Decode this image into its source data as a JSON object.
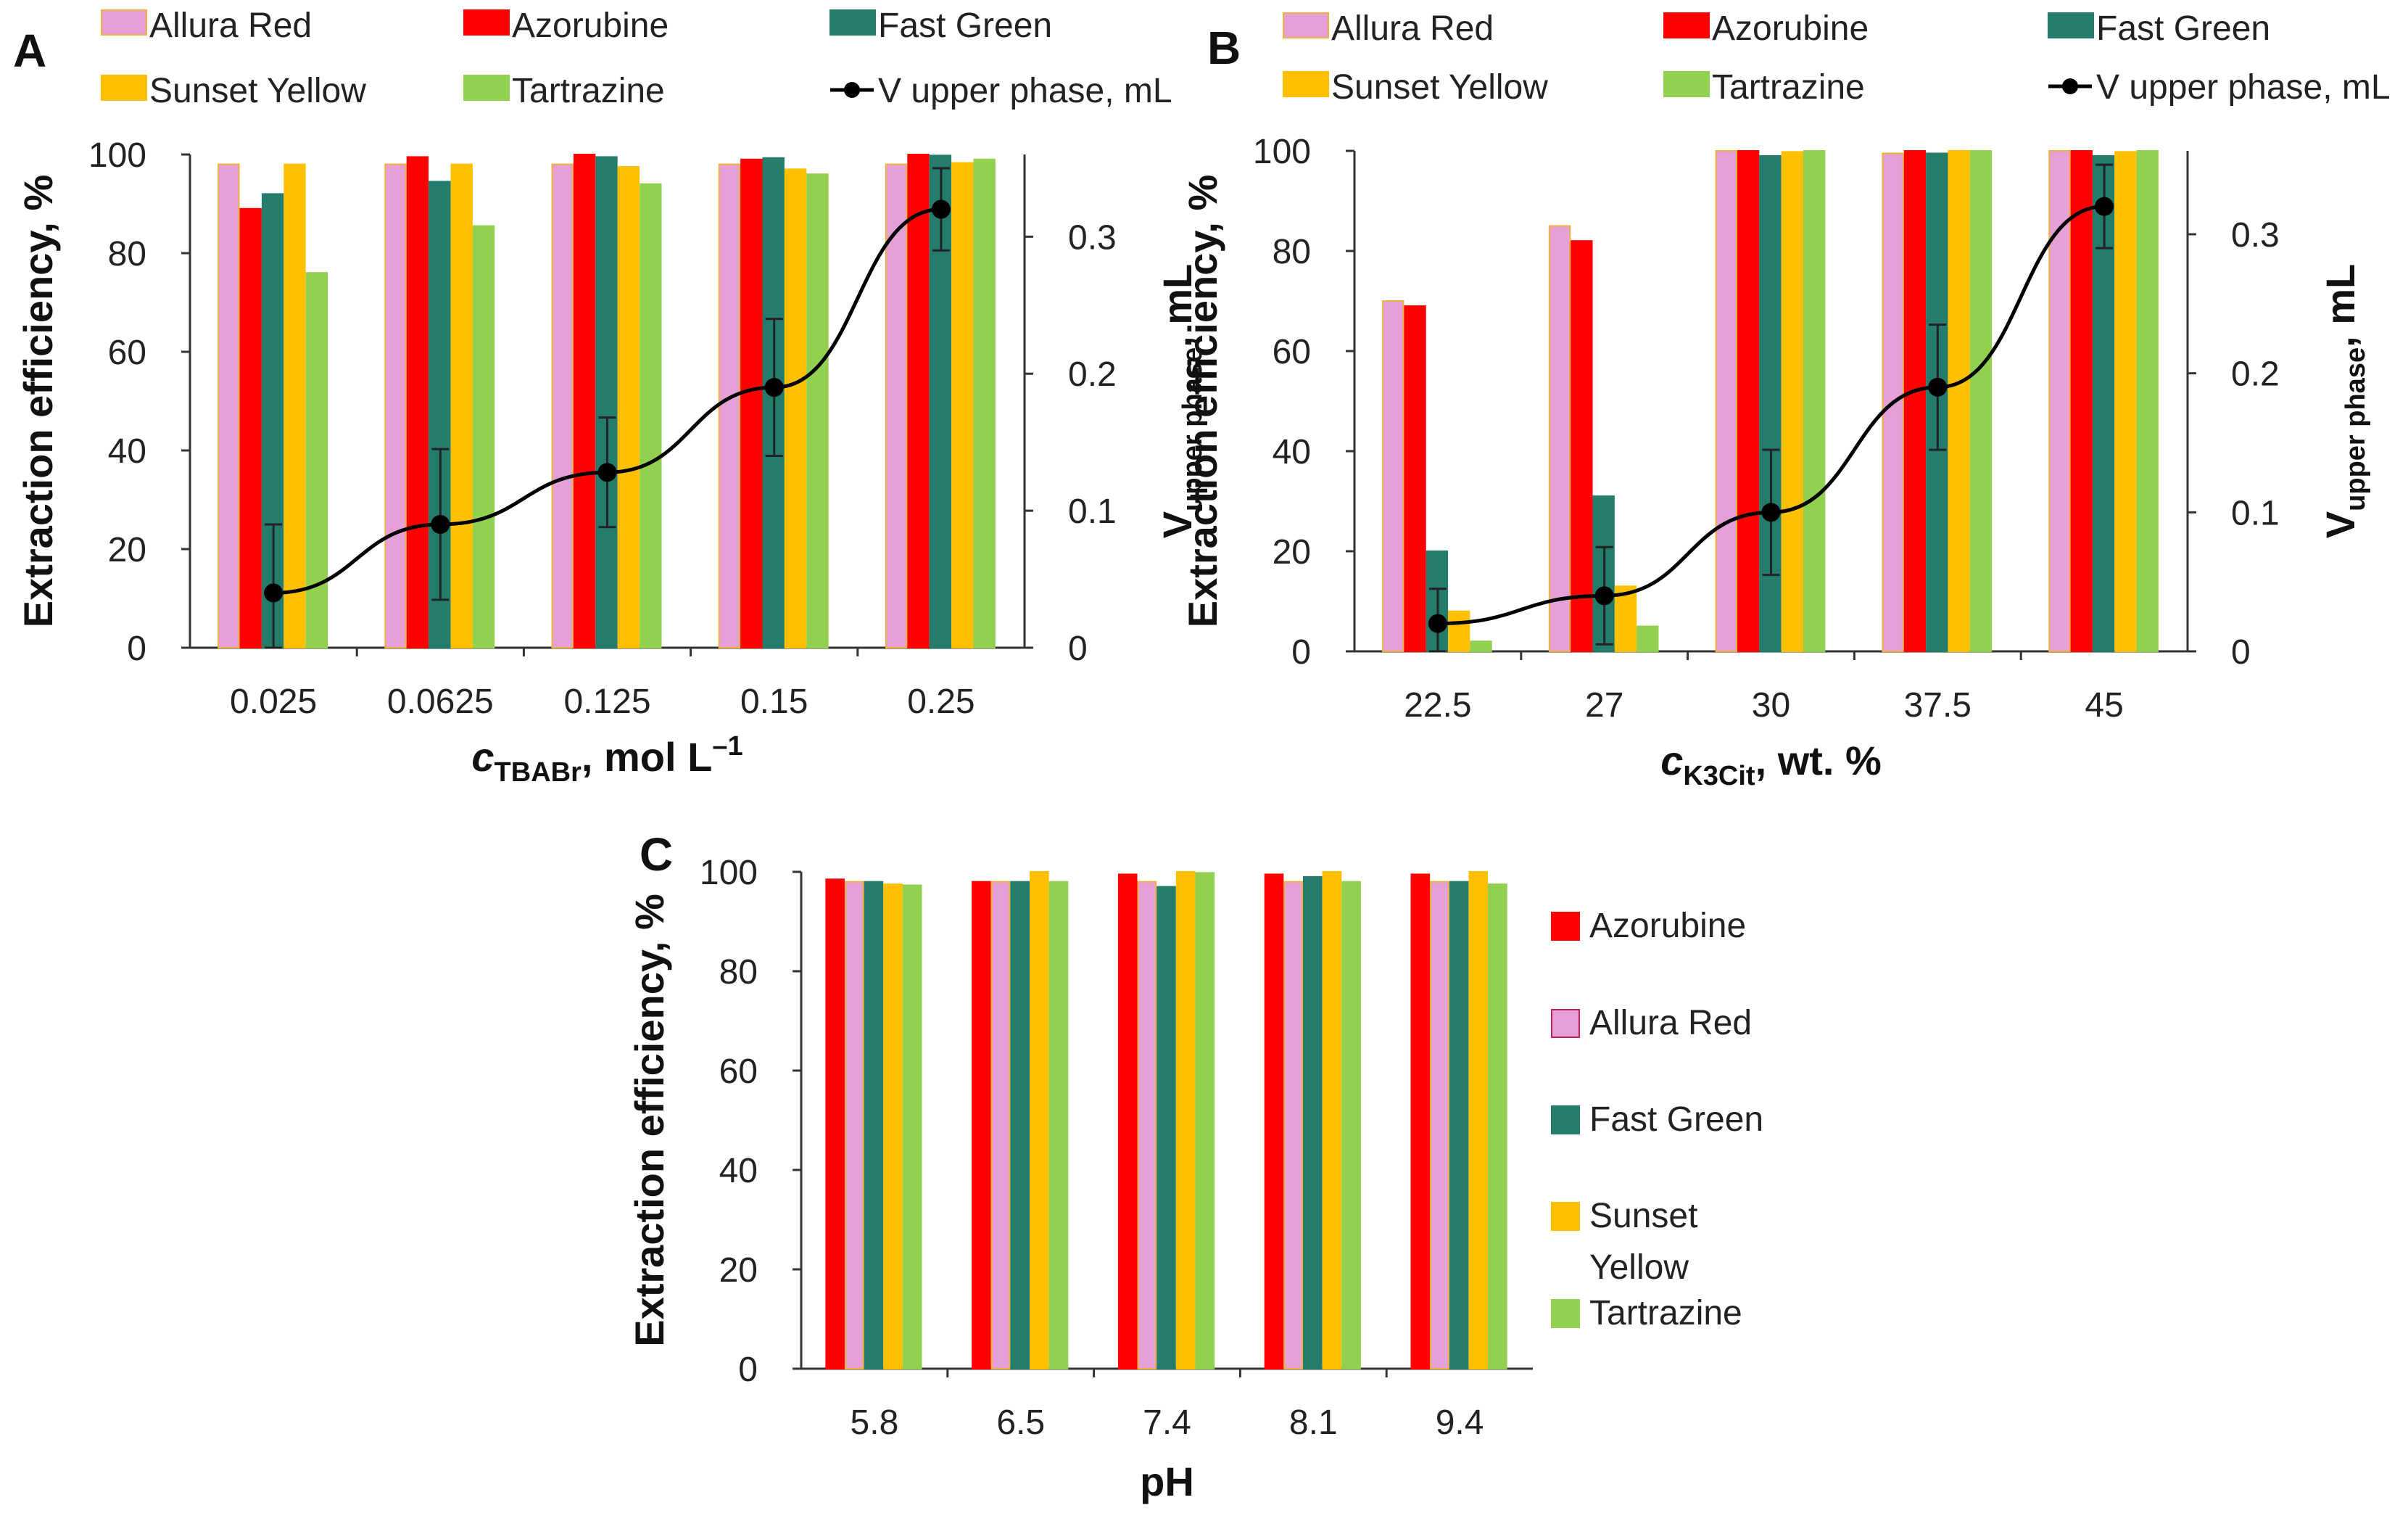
{
  "colors": {
    "allura_red": "#e6a0d8",
    "azorubine": "#ff0000",
    "fast_green": "#247c6c",
    "sunset_yellow": "#ffc000",
    "tartrazine": "#92d050",
    "line": "#000000"
  },
  "chart_data": [
    {
      "panel": "A",
      "type": "bar",
      "categories": [
        "0.025",
        "0.0625",
        "0.125",
        "0.15",
        "0.25"
      ],
      "series": [
        {
          "name": "Allura Red",
          "key": "allura_red",
          "values": [
            98,
            98,
            98,
            98,
            98
          ]
        },
        {
          "name": "Azorubine",
          "key": "azorubine",
          "values": [
            89,
            99.5,
            100,
            99,
            100
          ]
        },
        {
          "name": "Fast Green",
          "key": "fast_green",
          "values": [
            92,
            94.5,
            99.5,
            99.3,
            99.8
          ]
        },
        {
          "name": "Sunset Yellow",
          "key": "sunset_yellow",
          "values": [
            98,
            98,
            97.5,
            97,
            98.3
          ]
        },
        {
          "name": "Tartrazine",
          "key": "tartrazine",
          "values": [
            76,
            85.5,
            94,
            96,
            99
          ]
        }
      ],
      "line_series": {
        "name": "V upper phase, mL",
        "values": [
          0.04,
          0.09,
          0.128,
          0.19,
          0.32
        ],
        "errors": [
          0.05,
          0.055,
          0.04,
          0.05,
          0.03
        ]
      },
      "xlabel_main": "c",
      "xlabel_sub": "TBABr",
      "xlabel_rest": ", mol L",
      "xlabel_sup": "–1",
      "ylabel": "Extraction efficiency, %",
      "y2label_main": "V",
      "y2label_sub": "upper phase",
      "y2label_rest": ", mL",
      "ylim": [
        0,
        100
      ],
      "y2lim": [
        0,
        0.36
      ],
      "yticks": [
        "0",
        "20",
        "40",
        "60",
        "80",
        "100"
      ],
      "y2ticks": [
        "0",
        "0.1",
        "0.2",
        "0.3"
      ],
      "legend": [
        "Allura Red",
        "Azorubine",
        "Fast Green",
        "Sunset Yellow",
        "Tartrazine",
        "V upper phase, mL"
      ]
    },
    {
      "panel": "B",
      "type": "bar",
      "categories": [
        "22.5",
        "27",
        "30",
        "37.5",
        "45"
      ],
      "series": [
        {
          "name": "Allura Red",
          "key": "allura_red",
          "values": [
            70,
            85,
            100,
            99.5,
            100
          ]
        },
        {
          "name": "Azorubine",
          "key": "azorubine",
          "values": [
            69,
            82,
            100,
            100,
            100
          ]
        },
        {
          "name": "Fast Green",
          "key": "fast_green",
          "values": [
            20,
            31,
            99,
            99.5,
            99
          ]
        },
        {
          "name": "Sunset Yellow",
          "key": "sunset_yellow",
          "values": [
            8,
            13,
            99.8,
            100,
            99.8
          ]
        },
        {
          "name": "Tartrazine",
          "key": "tartrazine",
          "values": [
            2,
            5,
            100,
            100,
            100
          ]
        }
      ],
      "line_series": {
        "name": "V upper phase, mL",
        "values": [
          0.02,
          0.04,
          0.1,
          0.19,
          0.32
        ],
        "errors": [
          0.025,
          0.035,
          0.045,
          0.045,
          0.03
        ]
      },
      "xlabel_main": "c",
      "xlabel_sub": "K3Cit",
      "xlabel_rest": ", wt. %",
      "xlabel_sup": "",
      "ylabel": "Extraction efficiency, %",
      "y2label_main": "V",
      "y2label_sub": "upper phase",
      "y2label_rest": ", mL",
      "ylim": [
        0,
        100
      ],
      "y2lim": [
        0,
        0.36
      ],
      "yticks": [
        "0",
        "20",
        "40",
        "60",
        "80",
        "100"
      ],
      "y2ticks": [
        "0",
        "0.1",
        "0.2",
        "0.3"
      ],
      "legend": [
        "Allura Red",
        "Azorubine",
        "Fast Green",
        "Sunset Yellow",
        "Tartrazine",
        "V upper phase, mL"
      ]
    },
    {
      "panel": "C",
      "type": "bar",
      "categories": [
        "5.8",
        "6.5",
        "7.4",
        "8.1",
        "9.4"
      ],
      "series": [
        {
          "name": "Azorubine",
          "key": "azorubine",
          "values": [
            98.5,
            98,
            99.5,
            99.5,
            99.5
          ]
        },
        {
          "name": "Allura Red",
          "key": "allura_red",
          "values": [
            98,
            98,
            98,
            98,
            98
          ]
        },
        {
          "name": "Fast  Green",
          "key": "fast_green",
          "values": [
            98,
            98,
            97,
            99,
            98
          ]
        },
        {
          "name": "Sunset Yellow",
          "key": "sunset_yellow",
          "values": [
            97.5,
            100,
            100,
            100,
            100
          ]
        },
        {
          "name": "Tartrazine",
          "key": "tartrazine",
          "values": [
            97.3,
            98,
            99.8,
            98,
            97.5
          ]
        }
      ],
      "xlabel": "pH",
      "ylabel": "Extraction efficiency, %",
      "ylim": [
        0,
        100
      ],
      "yticks": [
        "0",
        "20",
        "40",
        "60",
        "80",
        "100"
      ],
      "legend": [
        "Azorubine",
        "Allura Red",
        "Fast  Green",
        "Sunset",
        "Yellow",
        "Tartrazine"
      ]
    }
  ]
}
